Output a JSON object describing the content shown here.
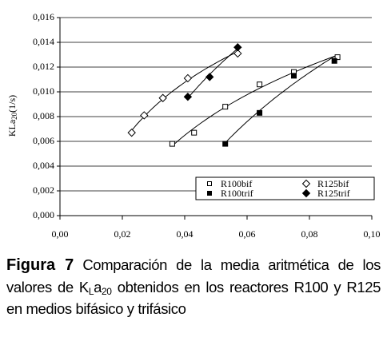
{
  "chart_data": {
    "type": "scatter",
    "y_label": {
      "main": "KLa",
      "sub": "20",
      "unit": "(1/s)"
    },
    "xlim": [
      0,
      0.1
    ],
    "xticks": [
      {
        "value": 0,
        "label": "0,00"
      },
      {
        "value": 0.02,
        "label": "0,02"
      },
      {
        "value": 0.04,
        "label": "0,04"
      },
      {
        "value": 0.06,
        "label": "0,06"
      },
      {
        "value": 0.08,
        "label": "0,08"
      },
      {
        "value": 0.1,
        "label": "0,10"
      }
    ],
    "ylim": [
      0,
      0.016
    ],
    "yticks": [
      {
        "value": 0,
        "label": "0,000"
      },
      {
        "value": 0.002,
        "label": "0,002"
      },
      {
        "value": 0.004,
        "label": "0,004"
      },
      {
        "value": 0.006,
        "label": "0,006"
      },
      {
        "value": 0.008,
        "label": "0,008"
      },
      {
        "value": 0.01,
        "label": "0,010"
      },
      {
        "value": 0.012,
        "label": "0,012"
      },
      {
        "value": 0.014,
        "label": "0,014"
      },
      {
        "value": 0.016,
        "label": "0,016"
      }
    ],
    "grid": true,
    "legend": "lower right",
    "series": [
      {
        "name": "R100bif",
        "color": "#000000",
        "marker": "square",
        "filled": false,
        "x": [
          0.036,
          0.043,
          0.053,
          0.064,
          0.075,
          0.089
        ],
        "values": [
          0.0058,
          0.0067,
          0.0088,
          0.0106,
          0.0116,
          0.0128
        ]
      },
      {
        "name": "R100trif",
        "color": "#000000",
        "marker": "square",
        "filled": true,
        "x": [
          0.053,
          0.064,
          0.075,
          0.088
        ],
        "values": [
          0.0058,
          0.0083,
          0.0113,
          0.0125
        ]
      },
      {
        "name": "R125bif",
        "color": "#000000",
        "marker": "diamond",
        "filled": false,
        "x": [
          0.023,
          0.027,
          0.033,
          0.041,
          0.057
        ],
        "values": [
          0.0067,
          0.0081,
          0.0095,
          0.0111,
          0.0131
        ]
      },
      {
        "name": "R125trif",
        "color": "#000000",
        "marker": "diamond",
        "filled": true,
        "x": [
          0.041,
          0.048,
          0.057
        ],
        "values": [
          0.0096,
          0.0112,
          0.0136
        ]
      }
    ]
  },
  "caption": {
    "label": "Figura 7",
    "text1": "Comparación de la media aritmética de los valores de K",
    "sub1": "L",
    "mid": "a",
    "sub2": "20",
    "text2": " obtenidos en los reactores R100 y R125 en medios bifásico y trifásico"
  }
}
